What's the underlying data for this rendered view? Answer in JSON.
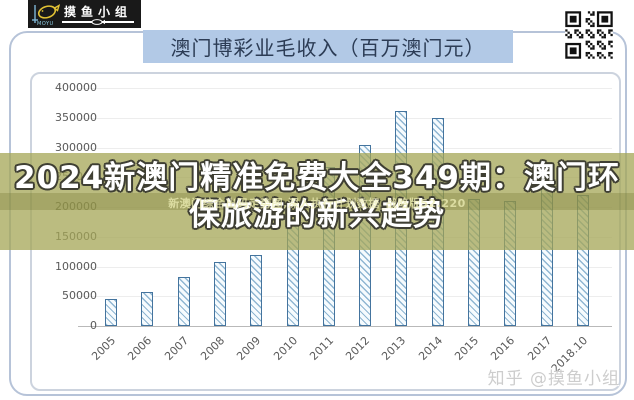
{
  "header": {
    "logo": {
      "group_name": "摸鱼小组",
      "sub_label": "MOYU"
    },
    "title": "澳门博彩业毛收入（百万澳门元）"
  },
  "overlay": {
    "line1": "2024新澳门精准免费大全349期：澳门环",
    "line2": "保旅游的新兴趋势",
    "small_watermark": "新澳门综合出码走势图,深入执行计划数据_战略版52.220"
  },
  "footer": {
    "watermark": "知乎 @摸鱼小组"
  },
  "chart_data": {
    "type": "bar",
    "title": "澳门博彩业毛收入（百万澳门元）",
    "categories": [
      "2005",
      "2006",
      "2007",
      "2008",
      "2009",
      "2010",
      "2011",
      "2012",
      "2013",
      "2014",
      "2015",
      "2016",
      "2017",
      "2018.10"
    ],
    "values": [
      45000,
      57000,
      83000,
      108000,
      120000,
      179000,
      268000,
      305000,
      362000,
      350000,
      213000,
      210000,
      268000,
      221000
    ],
    "xlabel": "",
    "ylabel": "",
    "ylim": [
      0,
      400000
    ],
    "ytick_step": 50000,
    "yticks": [
      "400000",
      "350000",
      "300000",
      "250000",
      "200000",
      "150000",
      "100000",
      "50000",
      "0"
    ],
    "grid": true,
    "legend": "none",
    "bar_style": "blue diagonal hatch"
  },
  "colors": {
    "title_bar_bg": "#b2c9e6",
    "title_text": "#2c3c55",
    "overlay_olive": "#a4a655",
    "overlay_text": "#ffffff",
    "bar_border": "#44749e",
    "bar_hatch": "#8fb6d2",
    "axis_text": "#595959",
    "frame_border": "#b6c3d8",
    "logo_bg": "#191919",
    "logo_fish": "#e2c234"
  },
  "icons": {
    "logo_fish": "fish-icon",
    "qr": "qr-code"
  }
}
